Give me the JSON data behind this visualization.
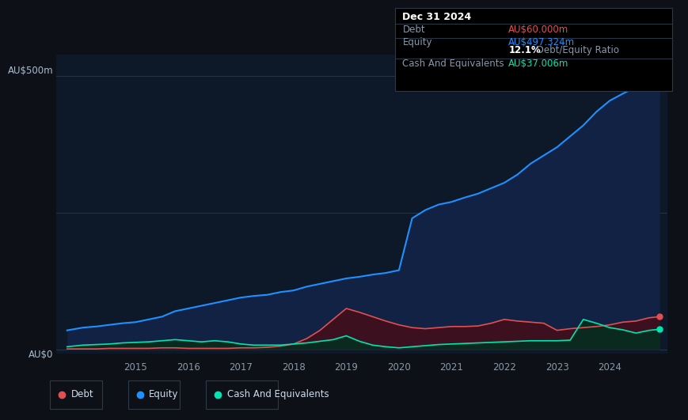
{
  "background_color": "#0d1117",
  "plot_bg_color": "#0d1928",
  "title_text": "Dec 31 2024",
  "tooltip_data": {
    "Debt": "AU$60.000m",
    "Equity": "AU$497.324m",
    "ratio": "12.1%",
    "Cash And Equivalents": "AU$37.006m"
  },
  "y_label_top": "AU$500m",
  "y_label_bottom": "AU$0",
  "debt_color": "#e05050",
  "equity_color": "#1e90ff",
  "cash_color": "#00e5b0",
  "equity_fill_color": "#112244",
  "debt_fill_color": "#3d1020",
  "cash_fill_color": "#0a2a20",
  "x_ticks": [
    2015,
    2016,
    2017,
    2018,
    2019,
    2020,
    2021,
    2022,
    2023,
    2024
  ],
  "years": [
    2013.7,
    2014.0,
    2014.25,
    2014.5,
    2014.75,
    2015.0,
    2015.25,
    2015.5,
    2015.75,
    2016.0,
    2016.25,
    2016.5,
    2016.75,
    2017.0,
    2017.25,
    2017.5,
    2017.75,
    2018.0,
    2018.25,
    2018.5,
    2018.75,
    2019.0,
    2019.25,
    2019.5,
    2019.75,
    2020.0,
    2020.25,
    2020.5,
    2020.75,
    2021.0,
    2021.25,
    2021.5,
    2021.75,
    2022.0,
    2022.25,
    2022.5,
    2022.75,
    2023.0,
    2023.25,
    2023.5,
    2023.75,
    2024.0,
    2024.25,
    2024.5,
    2024.75,
    2024.95
  ],
  "equity": [
    35,
    40,
    42,
    45,
    48,
    50,
    55,
    60,
    70,
    75,
    80,
    85,
    90,
    95,
    98,
    100,
    105,
    108,
    115,
    120,
    125,
    130,
    133,
    137,
    140,
    145,
    240,
    255,
    265,
    270,
    278,
    285,
    295,
    305,
    320,
    340,
    355,
    370,
    390,
    410,
    435,
    455,
    468,
    480,
    490,
    497
  ],
  "debt": [
    1,
    1,
    1,
    2,
    2,
    2,
    2,
    3,
    3,
    2,
    2,
    2,
    2,
    3,
    3,
    4,
    6,
    10,
    20,
    35,
    55,
    75,
    68,
    60,
    52,
    45,
    40,
    38,
    40,
    42,
    42,
    43,
    48,
    55,
    52,
    50,
    48,
    35,
    38,
    40,
    42,
    45,
    50,
    52,
    58,
    60
  ],
  "cash": [
    5,
    8,
    9,
    10,
    12,
    13,
    14,
    16,
    18,
    16,
    14,
    16,
    14,
    10,
    8,
    8,
    8,
    10,
    12,
    15,
    18,
    25,
    15,
    8,
    5,
    3,
    5,
    7,
    9,
    10,
    11,
    12,
    13,
    14,
    15,
    16,
    16,
    16,
    17,
    55,
    48,
    40,
    36,
    30,
    35,
    37
  ]
}
